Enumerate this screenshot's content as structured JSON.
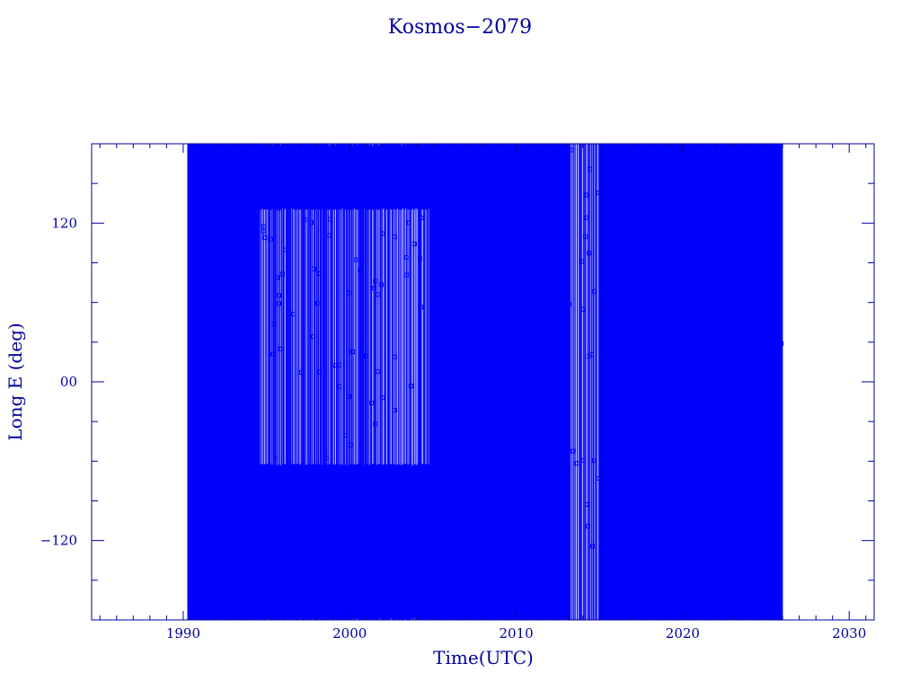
{
  "chart_data": {
    "type": "line",
    "title": "Kosmos−2079",
    "xlabel": "Time(UTC)",
    "ylabel": "Long E (deg)",
    "xlim": [
      1984.5,
      2031.5
    ],
    "ylim": [
      -180,
      180
    ],
    "x_ticks": [
      {
        "value": 1990,
        "label": "1990"
      },
      {
        "value": 2000,
        "label": "2000"
      },
      {
        "value": 2010,
        "label": "2010"
      },
      {
        "value": 2020,
        "label": "2020"
      },
      {
        "value": 2030,
        "label": "2030"
      }
    ],
    "y_ticks": [
      {
        "value": 120,
        "label": "120"
      },
      {
        "value": 0,
        "label": "00"
      },
      {
        "value": -120,
        "label": "−120"
      }
    ],
    "grid": false,
    "series": [
      {
        "color": "#0000ff",
        "data_start": 1990.3,
        "data_end": 2026.0,
        "segments": [
          {
            "from": 1990.3,
            "to": 1994.6,
            "density": "dense",
            "lon_range": [
              -180,
              180
            ]
          },
          {
            "from": 1994.6,
            "to": 2004.8,
            "density": "sparse",
            "lon_range": [
              -180,
              180
            ],
            "bands": [
              [
                -180,
                -62
              ],
              [
                130,
                180
              ]
            ]
          },
          {
            "from": 2004.8,
            "to": 2013.2,
            "density": "dense",
            "lon_range": [
              -180,
              180
            ]
          },
          {
            "from": 2013.2,
            "to": 2015.2,
            "density": "sparse",
            "lon_range": [
              -180,
              180
            ]
          },
          {
            "from": 2015.2,
            "to": 2019.7,
            "density": "dense",
            "lon_range": [
              -180,
              180
            ]
          },
          {
            "from": 2019.7,
            "to": 2026.0,
            "density": "medium",
            "lon_range": [
              -180,
              180
            ]
          }
        ]
      }
    ]
  },
  "colors": {
    "axis": "#0000a0",
    "data": "#0000ff",
    "text": "#0000a0"
  }
}
